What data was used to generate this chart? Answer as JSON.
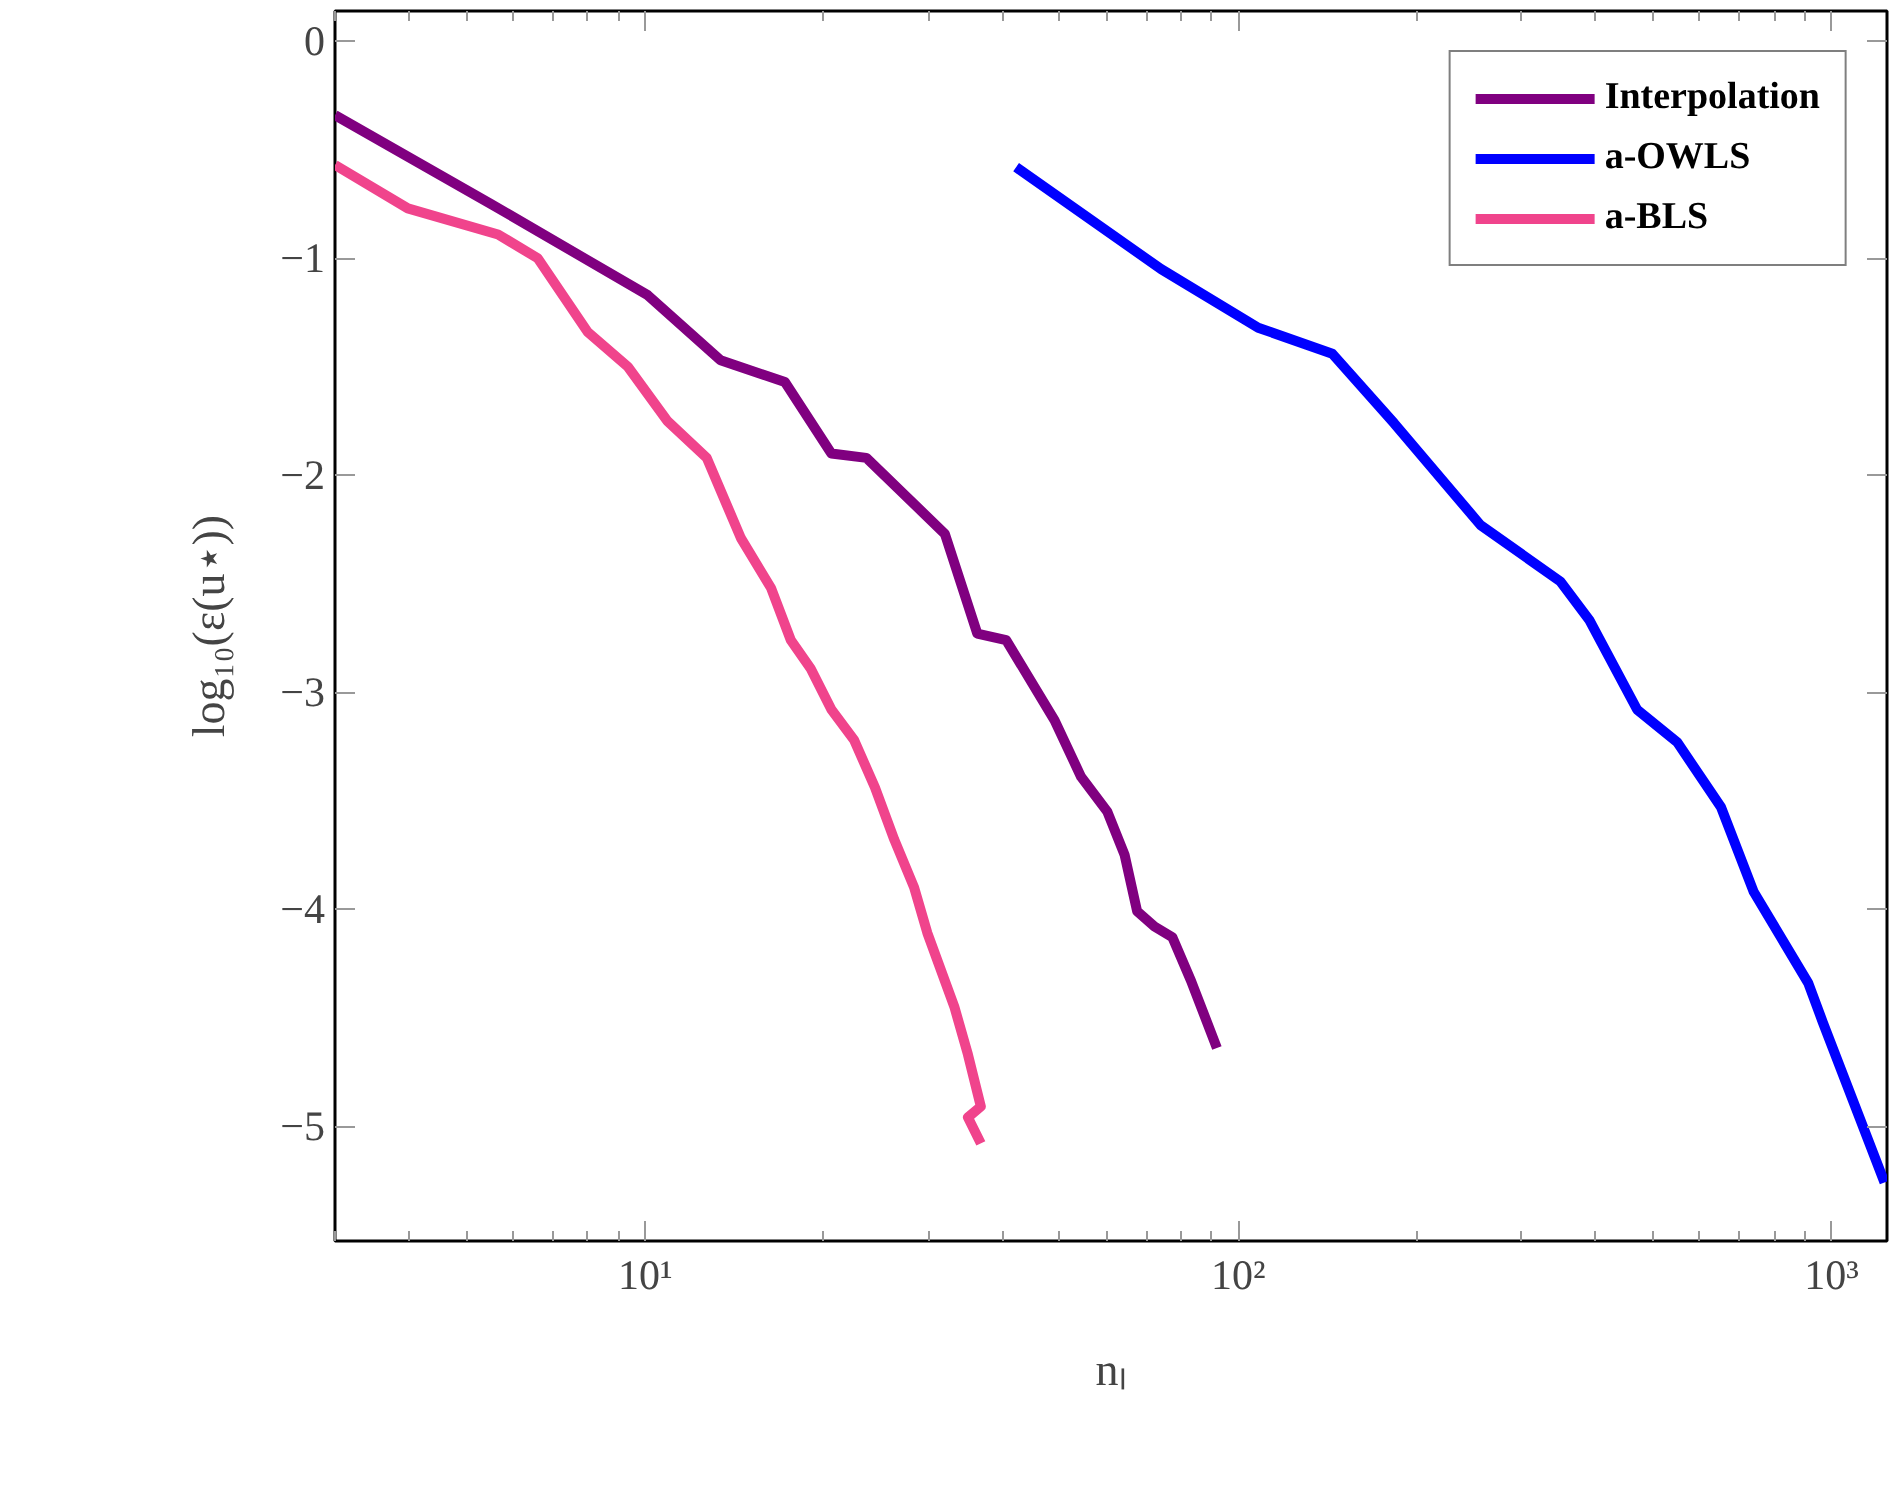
{
  "chart_data": {
    "type": "line",
    "xlabel": "nₗ",
    "ylabel": "log₁₀(ε(u⋆))",
    "log": "x",
    "xlim": [
      3,
      1240
    ],
    "ylim": [
      -5.53,
      0.14
    ],
    "xticks": [
      {
        "value": 10,
        "label": "10¹"
      },
      {
        "value": 100,
        "label": "10²"
      },
      {
        "value": 1000,
        "label": "10³"
      }
    ],
    "yticks": [
      {
        "value": 0,
        "label": "0"
      },
      {
        "value": -1,
        "label": "−1"
      },
      {
        "value": -2,
        "label": "−2"
      },
      {
        "value": -3,
        "label": "−3"
      },
      {
        "value": -4,
        "label": "−4"
      },
      {
        "value": -5,
        "label": "−5"
      }
    ],
    "grid": false,
    "legend": "top right",
    "marker": "none",
    "line_style": "solid",
    "series": [
      {
        "name": "Interpolation",
        "color": "#800080",
        "x": [
          3.0,
          5.5,
          10.1,
          13.4,
          17.2,
          20.6,
          23.6,
          32.0,
          36.3,
          40.6,
          49.0,
          54.3,
          60.1,
          64.3,
          67.5,
          72.2,
          77.4,
          83.2,
          92.0
        ],
        "values": [
          -0.34,
          -0.75,
          -1.17,
          -1.47,
          -1.57,
          -1.9,
          -1.92,
          -2.27,
          -2.73,
          -2.76,
          -3.13,
          -3.39,
          -3.55,
          -3.75,
          -4.01,
          -4.08,
          -4.13,
          -4.33,
          -4.64
        ]
      },
      {
        "name": "a-OWLS",
        "color": "#0000ff",
        "x": [
          42.2,
          74.1,
          108,
          144,
          183,
          256,
          349,
          391,
          470,
          549,
          651,
          739,
          913,
          966,
          1228
        ],
        "values": [
          -0.58,
          -1.05,
          -1.32,
          -1.44,
          -1.76,
          -2.23,
          -2.49,
          -2.67,
          -3.08,
          -3.23,
          -3.53,
          -3.92,
          -4.34,
          -4.52,
          -5.26
        ]
      },
      {
        "name": "a-BLS",
        "color": "#f0448c",
        "x": [
          3.0,
          3.98,
          5.65,
          6.59,
          8.0,
          9.35,
          10.9,
          12.7,
          14.5,
          16.3,
          17.6,
          19.0,
          20.6,
          22.5,
          24.4,
          26.3,
          28.4,
          29.9,
          33.2,
          35.0,
          36.8,
          35.0,
          36.8
        ],
        "values": [
          -0.57,
          -0.77,
          -0.89,
          -1.0,
          -1.34,
          -1.5,
          -1.75,
          -1.92,
          -2.29,
          -2.52,
          -2.76,
          -2.89,
          -3.08,
          -3.22,
          -3.44,
          -3.68,
          -3.9,
          -4.11,
          -4.45,
          -4.67,
          -4.91,
          -4.96,
          -5.08
        ]
      }
    ]
  }
}
